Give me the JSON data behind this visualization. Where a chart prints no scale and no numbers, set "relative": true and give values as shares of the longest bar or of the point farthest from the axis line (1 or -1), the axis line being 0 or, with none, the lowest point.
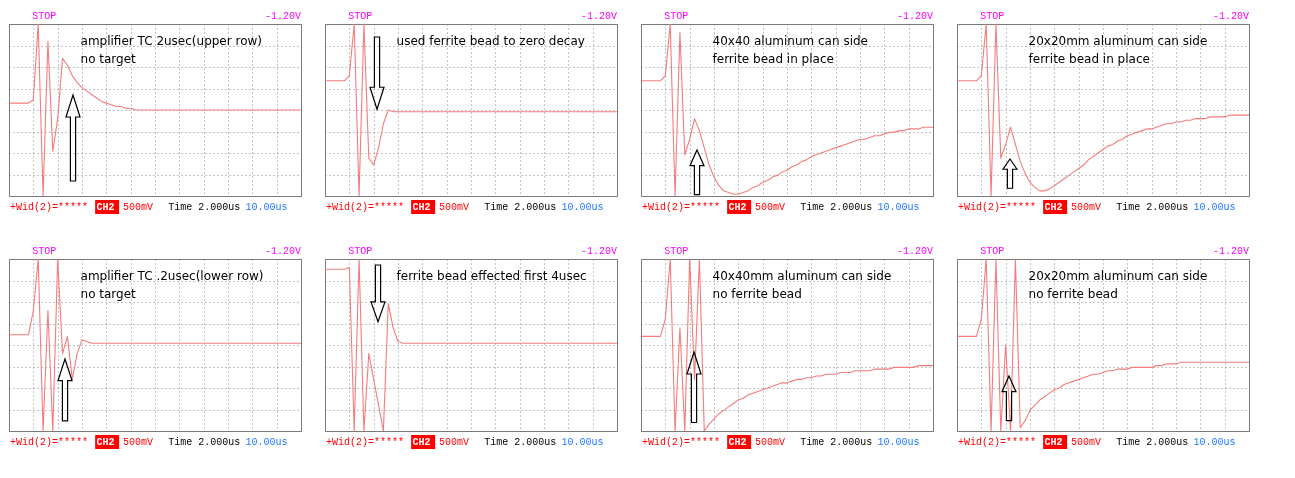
{
  "chart_data": [
    {
      "type": "line",
      "relative": true,
      "grid": true,
      "categories": [
        null,
        null,
        null,
        null,
        null,
        null,
        null,
        null,
        null,
        null,
        null,
        null,
        null,
        null,
        null,
        null,
        null,
        null,
        null,
        null,
        null,
        null,
        null,
        null,
        null,
        null,
        null,
        null,
        null,
        null,
        null,
        null,
        null,
        null,
        null,
        null,
        null,
        null,
        null,
        null,
        null,
        null,
        null,
        null,
        null,
        null,
        null,
        null,
        null,
        null,
        null,
        null,
        null,
        null,
        null,
        null,
        null,
        null,
        null,
        null,
        null
      ],
      "series": [
        {
          "color": "#f47c7c",
          "values": [
            0.54,
            0.54,
            0.54,
            0.54,
            0.54,
            0.56,
            1.0,
            0.0,
            0.9,
            0.26,
            0.45,
            0.8,
            0.76,
            0.7,
            0.66,
            0.63,
            0.61,
            0.59,
            0.57,
            0.55,
            0.54,
            0.53,
            0.52,
            0.52,
            0.51,
            0.51,
            0.5,
            0.5,
            0.5,
            0.5,
            0.5,
            0.5,
            0.5,
            0.5,
            0.5,
            0.5,
            0.5,
            0.5,
            0.5,
            0.5,
            0.5,
            0.5,
            0.5,
            0.5,
            0.5,
            0.5,
            0.5,
            0.5,
            0.5,
            0.5,
            0.5,
            0.5,
            0.5,
            0.5,
            0.5,
            0.5,
            0.5,
            0.5,
            0.5,
            0.5,
            0.5
          ]
        }
      ],
      "annotations": [
        "amplifier TC  2usec(upper row)",
        "no target",
        "STOP",
        "-1.20V",
        "+Wid(2)=*****",
        "CH2",
        "500mV",
        "Time 2.000us",
        "10.00us"
      ]
    },
    {
      "type": "line",
      "relative": true,
      "grid": true,
      "categories": [
        null,
        null,
        null,
        null,
        null,
        null,
        null,
        null,
        null,
        null,
        null,
        null,
        null,
        null,
        null,
        null,
        null,
        null,
        null,
        null,
        null,
        null,
        null,
        null,
        null,
        null,
        null,
        null,
        null,
        null,
        null,
        null,
        null,
        null,
        null,
        null,
        null,
        null,
        null,
        null,
        null,
        null,
        null,
        null,
        null,
        null,
        null,
        null,
        null,
        null,
        null,
        null,
        null,
        null,
        null,
        null,
        null,
        null,
        null,
        null,
        null
      ],
      "series": [
        {
          "color": "#f47c7c",
          "values": [
            0.67,
            0.67,
            0.67,
            0.67,
            0.67,
            0.7,
            1.0,
            0.0,
            1.0,
            0.22,
            0.18,
            0.28,
            0.42,
            0.5,
            0.49,
            0.49,
            0.49,
            0.49,
            0.49,
            0.49,
            0.49,
            0.49,
            0.49,
            0.49,
            0.49,
            0.49,
            0.49,
            0.49,
            0.49,
            0.49,
            0.49,
            0.49,
            0.49,
            0.49,
            0.49,
            0.49,
            0.49,
            0.49,
            0.49,
            0.49,
            0.49,
            0.49,
            0.49,
            0.49,
            0.49,
            0.49,
            0.49,
            0.49,
            0.49,
            0.49,
            0.49,
            0.49,
            0.49,
            0.49,
            0.49,
            0.49,
            0.49,
            0.49,
            0.49,
            0.49,
            0.49
          ]
        }
      ],
      "annotations": [
        "used ferrite bead to zero decay",
        "STOP",
        "-1.20V",
        "+Wid(2)=*****",
        "CH2",
        "500mV",
        "Time 2.000us",
        "10.00us"
      ]
    },
    {
      "type": "line",
      "relative": true,
      "grid": true,
      "categories": [
        null,
        null,
        null,
        null,
        null,
        null,
        null,
        null,
        null,
        null,
        null,
        null,
        null,
        null,
        null,
        null,
        null,
        null,
        null,
        null,
        null,
        null,
        null,
        null,
        null,
        null,
        null,
        null,
        null,
        null,
        null,
        null,
        null,
        null,
        null,
        null,
        null,
        null,
        null,
        null,
        null,
        null,
        null,
        null,
        null,
        null,
        null,
        null,
        null,
        null,
        null,
        null,
        null,
        null,
        null,
        null,
        null,
        null,
        null,
        null,
        null
      ],
      "series": [
        {
          "color": "#f47c7c",
          "values": [
            0.67,
            0.67,
            0.67,
            0.67,
            0.67,
            0.7,
            1.0,
            0.0,
            0.95,
            0.24,
            0.33,
            0.45,
            0.38,
            0.28,
            0.18,
            0.11,
            0.06,
            0.03,
            0.02,
            0.01,
            0.01,
            0.02,
            0.03,
            0.05,
            0.06,
            0.08,
            0.09,
            0.11,
            0.12,
            0.14,
            0.15,
            0.17,
            0.18,
            0.2,
            0.21,
            0.23,
            0.24,
            0.25,
            0.26,
            0.27,
            0.28,
            0.29,
            0.3,
            0.31,
            0.32,
            0.33,
            0.33,
            0.34,
            0.35,
            0.35,
            0.36,
            0.37,
            0.37,
            0.38,
            0.38,
            0.39,
            0.39,
            0.39,
            0.4,
            0.4,
            0.4
          ]
        }
      ],
      "annotations": [
        "40x40 aluminum can side",
        "ferrite bead in place",
        "STOP",
        "-1.20V",
        "+Wid(2)=*****",
        "CH2",
        "500mV",
        "Time 2.000us",
        "10.00us"
      ]
    },
    {
      "type": "line",
      "relative": true,
      "grid": true,
      "categories": [
        null,
        null,
        null,
        null,
        null,
        null,
        null,
        null,
        null,
        null,
        null,
        null,
        null,
        null,
        null,
        null,
        null,
        null,
        null,
        null,
        null,
        null,
        null,
        null,
        null,
        null,
        null,
        null,
        null,
        null,
        null,
        null,
        null,
        null,
        null,
        null,
        null,
        null,
        null,
        null,
        null,
        null,
        null,
        null,
        null,
        null,
        null,
        null,
        null,
        null,
        null,
        null,
        null,
        null,
        null,
        null,
        null,
        null,
        null,
        null,
        null
      ],
      "series": [
        {
          "color": "#f47c7c",
          "values": [
            0.67,
            0.67,
            0.67,
            0.67,
            0.67,
            0.7,
            1.0,
            0.0,
            1.0,
            0.22,
            0.3,
            0.4,
            0.3,
            0.2,
            0.13,
            0.08,
            0.05,
            0.03,
            0.03,
            0.04,
            0.06,
            0.08,
            0.1,
            0.12,
            0.14,
            0.16,
            0.18,
            0.21,
            0.23,
            0.25,
            0.27,
            0.29,
            0.3,
            0.32,
            0.33,
            0.35,
            0.36,
            0.37,
            0.38,
            0.39,
            0.39,
            0.4,
            0.41,
            0.42,
            0.42,
            0.43,
            0.43,
            0.44,
            0.44,
            0.45,
            0.45,
            0.45,
            0.46,
            0.46,
            0.46,
            0.46,
            0.47,
            0.47,
            0.47,
            0.47,
            0.47
          ]
        }
      ],
      "annotations": [
        "20x20mm aluminum can side",
        "ferrite bead in place",
        "STOP",
        "-1.20V",
        "+Wid(2)=*****",
        "CH2",
        "500mV",
        "Time 2.000us",
        "10.00us"
      ]
    },
    {
      "type": "line",
      "relative": true,
      "grid": true,
      "categories": [
        null,
        null,
        null,
        null,
        null,
        null,
        null,
        null,
        null,
        null,
        null,
        null,
        null,
        null,
        null,
        null,
        null,
        null,
        null,
        null,
        null,
        null,
        null,
        null,
        null,
        null,
        null,
        null,
        null,
        null,
        null,
        null,
        null,
        null,
        null,
        null,
        null,
        null,
        null,
        null,
        null,
        null,
        null,
        null,
        null,
        null,
        null,
        null,
        null,
        null,
        null,
        null,
        null,
        null,
        null,
        null,
        null,
        null,
        null,
        null,
        null
      ],
      "series": [
        {
          "color": "#f47c7c",
          "values": [
            0.56,
            0.56,
            0.56,
            0.56,
            0.56,
            0.7,
            1.0,
            0.0,
            0.7,
            0.0,
            1.0,
            0.45,
            0.55,
            0.3,
            0.45,
            0.53,
            0.52,
            0.51,
            0.51,
            0.51,
            0.51,
            0.51,
            0.51,
            0.51,
            0.51,
            0.51,
            0.51,
            0.51,
            0.51,
            0.51,
            0.51,
            0.51,
            0.51,
            0.51,
            0.51,
            0.51,
            0.51,
            0.51,
            0.51,
            0.51,
            0.51,
            0.51,
            0.51,
            0.51,
            0.51,
            0.51,
            0.51,
            0.51,
            0.51,
            0.51,
            0.51,
            0.51,
            0.51,
            0.51,
            0.51,
            0.51,
            0.51,
            0.51,
            0.51,
            0.51,
            0.51
          ]
        }
      ],
      "annotations": [
        "amplifier TC  .2usec(lower row)",
        "no target",
        "STOP",
        "-1.20V",
        "+Wid(2)=*****",
        "CH2",
        "500mV",
        "Time 2.000us",
        "10.00us"
      ]
    },
    {
      "type": "line",
      "relative": true,
      "grid": true,
      "categories": [
        null,
        null,
        null,
        null,
        null,
        null,
        null,
        null,
        null,
        null,
        null,
        null,
        null,
        null,
        null,
        null,
        null,
        null,
        null,
        null,
        null,
        null,
        null,
        null,
        null,
        null,
        null,
        null,
        null,
        null,
        null,
        null,
        null,
        null,
        null,
        null,
        null,
        null,
        null,
        null,
        null,
        null,
        null,
        null,
        null,
        null,
        null,
        null,
        null,
        null,
        null,
        null,
        null,
        null,
        null,
        null,
        null,
        null,
        null,
        null,
        null
      ],
      "series": [
        {
          "color": "#f47c7c",
          "values": [
            0.94,
            0.94,
            0.94,
            0.94,
            0.94,
            0.95,
            0.0,
            1.0,
            0.0,
            0.45,
            0.3,
            0.15,
            0.0,
            0.74,
            0.6,
            0.52,
            0.51,
            0.51,
            0.51,
            0.51,
            0.51,
            0.51,
            0.51,
            0.51,
            0.51,
            0.51,
            0.51,
            0.51,
            0.51,
            0.51,
            0.51,
            0.51,
            0.51,
            0.51,
            0.51,
            0.51,
            0.51,
            0.51,
            0.51,
            0.51,
            0.51,
            0.51,
            0.51,
            0.51,
            0.51,
            0.51,
            0.51,
            0.51,
            0.51,
            0.51,
            0.51,
            0.51,
            0.51,
            0.51,
            0.51,
            0.51,
            0.51,
            0.51,
            0.51,
            0.51,
            0.51
          ]
        }
      ],
      "annotations": [
        "ferrite bead effected first 4usec",
        "STOP",
        "-1.20V",
        "+Wid(2)=*****",
        "CH2",
        "500mV",
        "Time 2.000us",
        "10.00us"
      ]
    },
    {
      "type": "line",
      "relative": true,
      "grid": true,
      "categories": [
        null,
        null,
        null,
        null,
        null,
        null,
        null,
        null,
        null,
        null,
        null,
        null,
        null,
        null,
        null,
        null,
        null,
        null,
        null,
        null,
        null,
        null,
        null,
        null,
        null,
        null,
        null,
        null,
        null,
        null,
        null,
        null,
        null,
        null,
        null,
        null,
        null,
        null,
        null,
        null,
        null,
        null,
        null,
        null,
        null,
        null,
        null,
        null,
        null,
        null,
        null,
        null,
        null,
        null,
        null,
        null,
        null,
        null,
        null,
        null,
        null
      ],
      "series": [
        {
          "color": "#f47c7c",
          "values": [
            0.55,
            0.55,
            0.55,
            0.55,
            0.55,
            0.65,
            1.0,
            0.0,
            0.6,
            0.0,
            1.0,
            0.3,
            1.0,
            0.0,
            0.04,
            0.07,
            0.1,
            0.12,
            0.14,
            0.16,
            0.18,
            0.19,
            0.21,
            0.22,
            0.23,
            0.24,
            0.25,
            0.26,
            0.27,
            0.28,
            0.28,
            0.29,
            0.3,
            0.3,
            0.31,
            0.31,
            0.32,
            0.32,
            0.33,
            0.33,
            0.33,
            0.34,
            0.34,
            0.34,
            0.35,
            0.35,
            0.35,
            0.35,
            0.36,
            0.36,
            0.36,
            0.36,
            0.37,
            0.37,
            0.37,
            0.37,
            0.37,
            0.38,
            0.38,
            0.38,
            0.38
          ]
        }
      ],
      "annotations": [
        "40x40mm aluminum can side",
        "no ferrite bead",
        "STOP",
        "-1.20V",
        "+Wid(2)=*****",
        "CH2",
        "500mV",
        "Time 2.000us",
        "10.00us"
      ]
    },
    {
      "type": "line",
      "relative": true,
      "grid": true,
      "categories": [
        null,
        null,
        null,
        null,
        null,
        null,
        null,
        null,
        null,
        null,
        null,
        null,
        null,
        null,
        null,
        null,
        null,
        null,
        null,
        null,
        null,
        null,
        null,
        null,
        null,
        null,
        null,
        null,
        null,
        null,
        null,
        null,
        null,
        null,
        null,
        null,
        null,
        null,
        null,
        null,
        null,
        null,
        null,
        null,
        null,
        null,
        null,
        null,
        null,
        null,
        null,
        null,
        null,
        null,
        null,
        null,
        null,
        null,
        null,
        null,
        null
      ],
      "series": [
        {
          "color": "#f47c7c",
          "values": [
            0.55,
            0.55,
            0.55,
            0.55,
            0.55,
            0.65,
            1.0,
            0.0,
            1.0,
            0.0,
            0.5,
            0.0,
            1.0,
            0.02,
            0.06,
            0.12,
            0.15,
            0.18,
            0.2,
            0.22,
            0.24,
            0.25,
            0.27,
            0.28,
            0.29,
            0.3,
            0.31,
            0.32,
            0.33,
            0.33,
            0.34,
            0.35,
            0.35,
            0.36,
            0.36,
            0.36,
            0.37,
            0.37,
            0.37,
            0.37,
            0.37,
            0.38,
            0.38,
            0.39,
            0.39,
            0.39,
            0.4,
            0.4,
            0.4,
            0.4,
            0.4,
            0.4,
            0.4,
            0.4,
            0.4,
            0.4,
            0.4,
            0.4,
            0.4,
            0.4,
            0.4
          ]
        }
      ],
      "annotations": [
        "20x20mm aluminum can side",
        "no ferrite bead",
        "STOP",
        "-1.20V",
        "+Wid(2)=*****",
        "CH2",
        "500mV",
        "Time 2.000us",
        "10.00us"
      ]
    }
  ]
}
